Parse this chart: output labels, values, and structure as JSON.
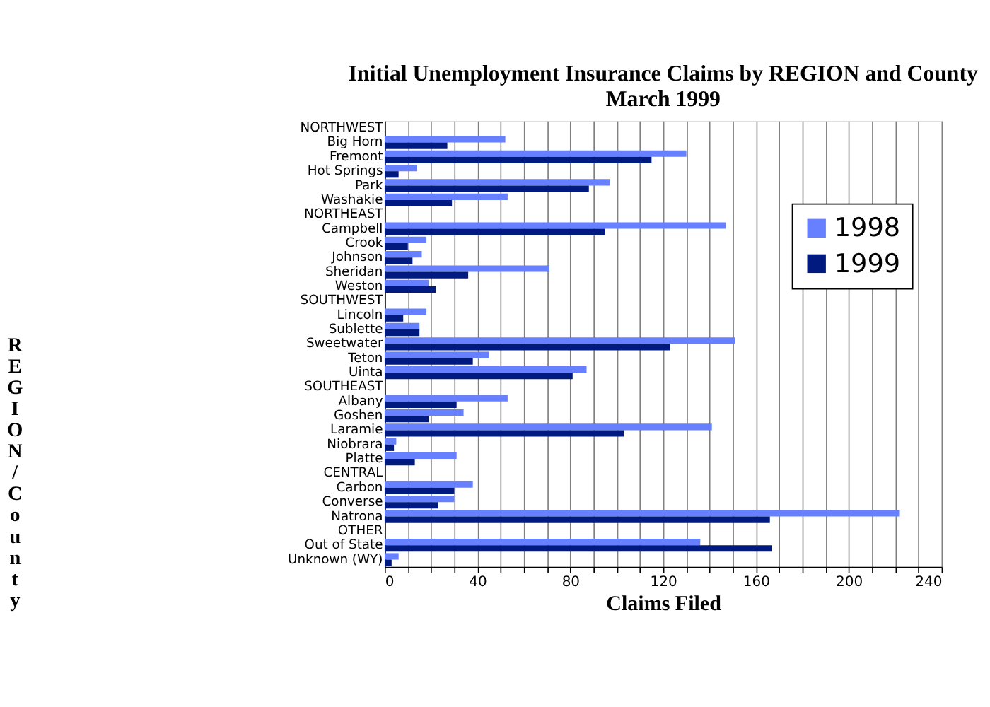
{
  "chart_data": {
    "type": "bar",
    "orientation": "horizontal",
    "title": "Initial Unemployment Insurance Claims by REGION and County",
    "subtitle": "March 1999",
    "xlabel": "Claims Filed",
    "ylabel": "REGION/County",
    "categories": [
      "NORTHWEST",
      "Big Horn",
      "Fremont",
      "Hot Springs",
      "Park",
      "Washakie",
      "NORTHEAST",
      "Campbell",
      "Crook",
      "Johnson",
      "Sheridan",
      "Weston",
      "SOUTHWEST",
      "Lincoln",
      "Sublette",
      "Sweetwater",
      "Teton",
      "Uinta",
      "SOUTHEAST",
      "Albany",
      "Goshen",
      "Laramie",
      "Niobrara",
      "Platte",
      "CENTRAL",
      "Carbon",
      "Converse",
      "Natrona",
      "OTHER",
      "Out of State",
      "Unknown (WY)"
    ],
    "series": [
      {
        "name": "1998",
        "color": "#6680ff",
        "values": [
          null,
          52,
          130,
          14,
          97,
          53,
          null,
          147,
          18,
          16,
          71,
          19,
          null,
          18,
          15,
          151,
          45,
          87,
          null,
          53,
          34,
          141,
          5,
          31,
          null,
          38,
          30,
          222,
          null,
          136,
          6
        ]
      },
      {
        "name": "1999",
        "color": "#001a80",
        "values": [
          null,
          27,
          115,
          6,
          88,
          29,
          null,
          95,
          10,
          12,
          36,
          22,
          null,
          8,
          15,
          123,
          38,
          81,
          null,
          31,
          19,
          103,
          4,
          13,
          null,
          30,
          23,
          166,
          null,
          167,
          3
        ]
      }
    ],
    "xlim": [
      0,
      240
    ],
    "xticks": [
      0,
      {
        "value": 10,
        "label": null
      },
      {
        "value": 20,
        "label": null
      },
      {
        "value": 30,
        "label": null
      },
      40,
      {
        "value": 50,
        "label": null
      },
      {
        "value": 60,
        "label": null
      },
      {
        "value": 70,
        "label": null
      },
      80,
      {
        "value": 90,
        "label": null
      },
      {
        "value": 100,
        "label": null
      },
      {
        "value": 110,
        "label": null
      },
      120,
      {
        "value": 130,
        "label": null
      },
      {
        "value": 140,
        "label": null
      },
      {
        "value": 150,
        "label": null
      },
      160,
      {
        "value": 170,
        "label": null
      },
      {
        "value": 180,
        "label": null
      },
      {
        "value": 190,
        "label": null
      },
      200,
      {
        "value": 210,
        "label": null
      },
      {
        "value": 220,
        "label": null
      },
      {
        "value": 230,
        "label": null
      },
      240
    ],
    "grid": "x",
    "legend": "right"
  }
}
